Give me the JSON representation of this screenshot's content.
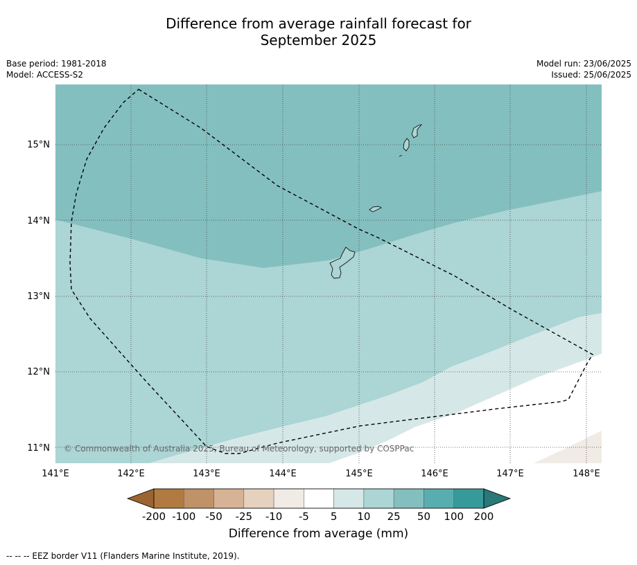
{
  "title_line1": "Difference from average rainfall forecast for",
  "title_line2": "September 2025",
  "meta_left": {
    "base_period": "Base period: 1981-2018",
    "model": "Model: ACCESS-S2"
  },
  "meta_right": {
    "model_run": "Model run: 23/06/2025",
    "issued": "Issued: 25/06/2025"
  },
  "map": {
    "lat_labels": [
      "15°N",
      "14°N",
      "13°N",
      "12°N",
      "11°N"
    ],
    "lon_labels": [
      "141°E",
      "142°E",
      "143°E",
      "144°E",
      "145°E",
      "146°E",
      "147°E",
      "148°E"
    ],
    "copyright": "© Commonwealth of Australia 2025, Bureau of Meteorology, supported by COSPPac"
  },
  "colorbar": {
    "title": "Difference from average (mm)",
    "tick_labels": [
      "-200",
      "-100",
      "-50",
      "-25",
      "-10",
      "-5",
      "5",
      "10",
      "25",
      "50",
      "100",
      "200"
    ],
    "colors": [
      "#9c6431",
      "#b07a40",
      "#c19268",
      "#d6b394",
      "#e6d1be",
      "#f1ebe6",
      "#ffffff",
      "#d5e8e7",
      "#acd5d5",
      "#84bfbf",
      "#58aeae",
      "#369a9a",
      "#2a7878"
    ]
  },
  "map_colors": {
    "band_25_50": "#84bfbf",
    "band_10_25": "#acd5d5",
    "band_5_10": "#d5e8e7",
    "band_m5_5": "#ffffff",
    "band_m10_m5": "#f1ebe6"
  },
  "footnote": "--  --  -- EEZ border V11 (Flanders Marine Institute, 2019)."
}
